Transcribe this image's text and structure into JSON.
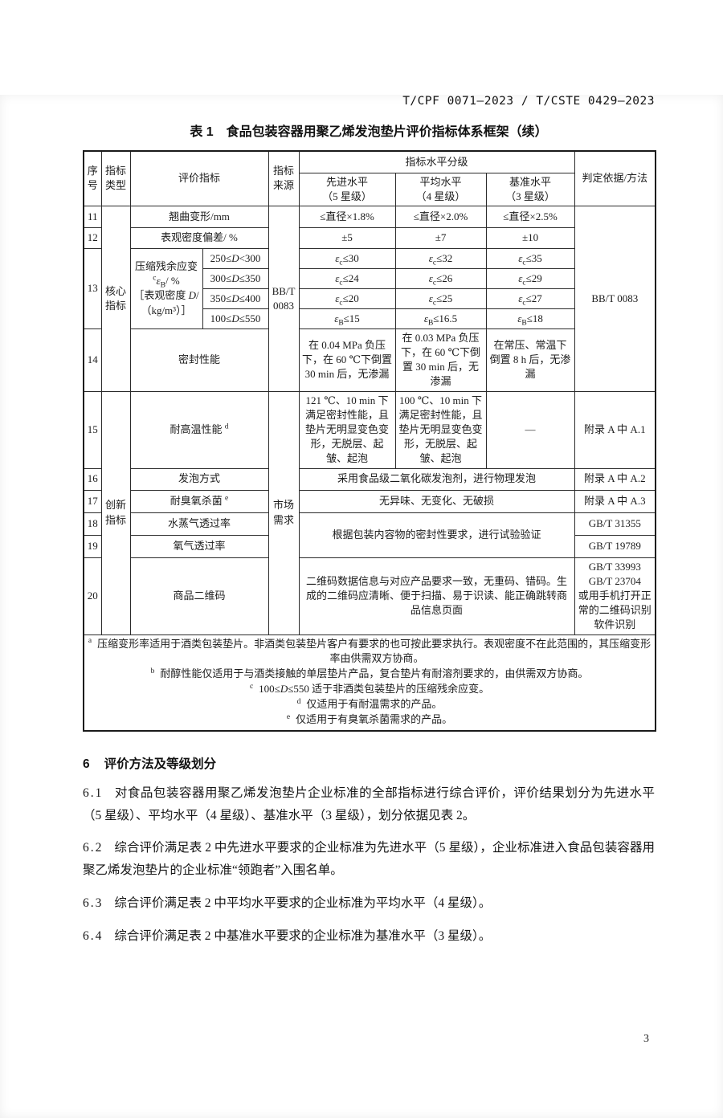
{
  "doc": {
    "header_ref": "T/CPF 0071—2023 / T/CSTE 0429—2023",
    "page_number": "3"
  },
  "table": {
    "title": "表 1　食品包装容器用聚乙烯发泡垫片评价指标体系框架（续）",
    "headers": {
      "seq": "序号",
      "type": "指标类型",
      "indicator": "评价指标",
      "source": "指标来源",
      "grading": "指标水平分级",
      "advanced": "先进水平\n（5 星级）",
      "average": "平均水平\n（4 星级）",
      "baseline": "基准水平\n（3 星级）",
      "basis": "判定依据/方法"
    },
    "type_groups": {
      "core": "核心指标",
      "innovation": "创新指标"
    },
    "sources": {
      "core": "BB/T 0083",
      "innovation": "市场需求"
    },
    "rows": {
      "r11": {
        "no": "11",
        "name": "翘曲变形/mm",
        "adv": "≤直径×1.8%",
        "avg": "≤直径×2.0%",
        "base": "≤直径×2.5%"
      },
      "r12": {
        "no": "12",
        "name": "表观密度偏差/ %",
        "adv": "±5",
        "avg": "±7",
        "base": "±10"
      },
      "r13": {
        "no": "13",
        "name_html": "压缩残余应变<br><sup>c</sup><i>ε</i><sub>B</sub>/ %<br>［表观密度 <i>D</i>/<br>（kg/m³）］",
        "basis": "BB/T 0083",
        "subrows": [
          {
            "range": "250≤<i>D</i>&lt;300",
            "adv": "<i>ε</i><sub>c</sub>≤30",
            "avg": "<i>ε</i><sub>c</sub>≤32",
            "base": "<i>ε</i><sub>c</sub>≤35"
          },
          {
            "range": "300≤<i>D</i>≤350",
            "adv": "<i>ε</i><sub>c</sub>≤24",
            "avg": "<i>ε</i><sub>c</sub>≤26",
            "base": "<i>ε</i><sub>c</sub>≤29"
          },
          {
            "range": "350≤<i>D</i>≤400",
            "adv": "<i>ε</i><sub>c</sub>≤20",
            "avg": "<i>ε</i><sub>c</sub>≤25",
            "base": "<i>ε</i><sub>c</sub>≤27"
          },
          {
            "range": "100≤<i>D</i>≤550",
            "adv": "<i>ε</i><sub>B</sub>≤15",
            "avg": "<i>ε</i><sub>B</sub>≤16.5",
            "base": "<i>ε</i><sub>B</sub>≤18"
          }
        ]
      },
      "r14": {
        "no": "14",
        "name": "密封性能",
        "adv": "在 0.04 MPa 负压下，在 60 ℃下倒置 30 min 后，无渗漏",
        "avg": "在 0.03 MPa 负压下，在 60 ℃下倒置 30 min 后，无渗漏",
        "base": "在常压、常温下倒置 8 h 后，无渗漏"
      },
      "r15": {
        "no": "15",
        "name_html": "耐高温性能 <sup>d</sup>",
        "adv": "121 ℃、10 min 下满足密封性能，且垫片无明显变色变形，无脱层、起皱、起泡",
        "avg": "100 ℃、10 min 下满足密封性能，且垫片无明显变色变形，无脱层、起皱、起泡",
        "base": "—",
        "basis": "附录 A 中 A.1"
      },
      "r16": {
        "no": "16",
        "name": "发泡方式",
        "value": "采用食品级二氧化碳发泡剂，进行物理发泡",
        "basis": "附录 A 中 A.2"
      },
      "r17": {
        "no": "17",
        "name_html": "耐臭氧杀菌 <sup>e</sup>",
        "value": "无异味、无变化、无破损",
        "basis": "附录 A 中 A.3"
      },
      "r18": {
        "no": "18",
        "name": "水蒸气透过率",
        "basis": "GB/T 31355"
      },
      "r19": {
        "no": "19",
        "name": "氧气透过率",
        "basis": "GB/T 19789"
      },
      "r18_19_value": "根据包装内容物的密封性要求，进行试验验证",
      "r20": {
        "no": "20",
        "name": "商品二维码",
        "value": "二维码数据信息与对应产品要求一致，无重码、错码。生成的二维码应清晰、便于扫描、易于识读、能正确跳转商品信息页面",
        "basis": "GB/T 33993\nGB/T 23704\n或用手机打开正常的二维码识别软件识别"
      }
    },
    "footnotes": [
      {
        "marker": "a",
        "text_html": "压缩变形率适用于酒类包装垫片。非酒类包装垫片客户有要求的也可按此要求执行。表观密度不在此范围的，其压缩变形率由供需双方协商。"
      },
      {
        "marker": "b",
        "text_html": "耐醇性能仅适用于与酒类接触的单层垫片产品，复合垫片有耐溶剂要求的，由供需双方协商。"
      },
      {
        "marker": "c",
        "text_html": "100≤<i>D</i>≤550 适于非酒类包装垫片的压缩残余应变。"
      },
      {
        "marker": "d",
        "text_html": "仅适用于有耐温需求的产品。"
      },
      {
        "marker": "e",
        "text_html": "仅适用于有臭氧杀菌需求的产品。"
      }
    ]
  },
  "section6": {
    "heading_num": "6",
    "heading_text": "评价方法及等级划分",
    "paragraphs": [
      {
        "num": "6.1",
        "text": "对食品包装容器用聚乙烯发泡垫片企业标准的全部指标进行综合评价，评价结果划分为先进水平（5 星级）、平均水平（4 星级）、基准水平（3 星级），划分依据见表 2。"
      },
      {
        "num": "6.2",
        "text": "综合评价满足表 2 中先进水平要求的企业标准为先进水平（5 星级），企业标准进入食品包装容器用聚乙烯发泡垫片的企业标准“领跑者”入围名单。"
      },
      {
        "num": "6.3",
        "text": "综合评价满足表 2 中平均水平要求的企业标准为平均水平（4 星级）。"
      },
      {
        "num": "6.4",
        "text": "综合评价满足表 2 中基准水平要求的企业标准为基准水平（3 星级）。"
      }
    ]
  }
}
